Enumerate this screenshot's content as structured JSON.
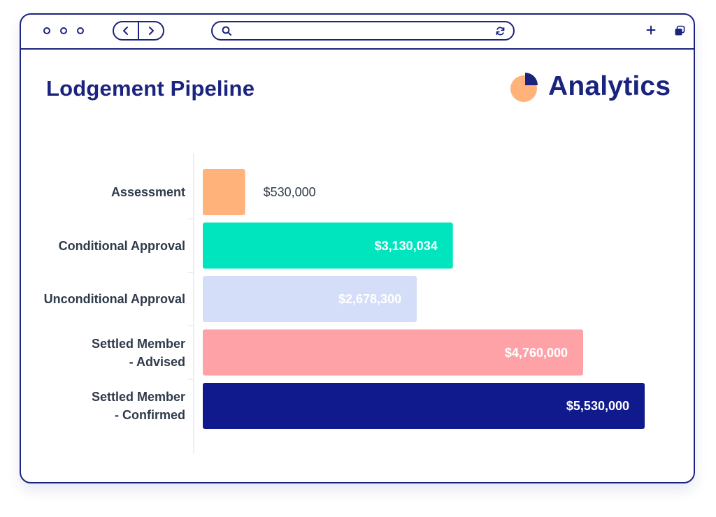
{
  "browser": {
    "window_controls": [
      "dot",
      "dot",
      "dot"
    ],
    "nav": {
      "back_icon": "chevron-left-icon",
      "forward_icon": "chevron-right-icon"
    },
    "address_bar": {
      "value": "",
      "search_icon": "search-icon",
      "refresh_icon": "refresh-icon"
    },
    "actions": {
      "new_tab_icon": "plus-icon",
      "tabs_icon": "tabs-icon"
    }
  },
  "page": {
    "title": "Lodgement Pipeline",
    "brand": {
      "name": "Analytics",
      "logo_icon": "pie-chart-icon"
    }
  },
  "colors": {
    "primary": "#1a237e",
    "assessment": "#ffb27a",
    "conditional": "#00e5be",
    "unconditional": "#d5def8",
    "advised": "#ffa2a8",
    "confirmed": "#101a8c"
  },
  "chart_data": {
    "type": "bar",
    "orientation": "horizontal",
    "title": "Lodgement Pipeline",
    "xlabel": "",
    "ylabel": "",
    "xlim": [
      0,
      5530000
    ],
    "grid": false,
    "categories": [
      "Assessment",
      "Conditional Approval",
      "Unconditional Approval",
      "Settled Member\n- Advised",
      "Settled Member\n- Confirmed"
    ],
    "values": [
      530000,
      3130034,
      2678300,
      4760000,
      5530000
    ],
    "value_labels": [
      "$530,000",
      "$3,130,034",
      "$2,678,300",
      "$4,760,000",
      "$5,530,000"
    ],
    "colors": [
      "#ffb27a",
      "#00e5be",
      "#d5def8",
      "#ffa2a8",
      "#101a8c"
    ]
  }
}
